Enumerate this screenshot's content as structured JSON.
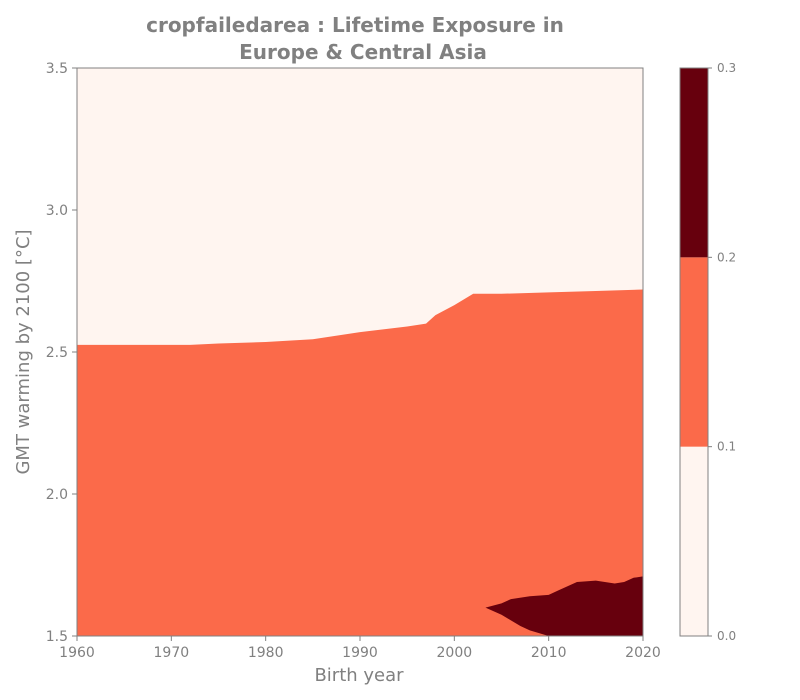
{
  "chart_data": {
    "type": "filled-contour",
    "title_lines": [
      "cropfailedarea : Lifetime Exposure in",
      "Europe & Central Asia"
    ],
    "xlabel": "Birth year",
    "ylabel": "GMT warming by 2100 [°C]",
    "xlim": [
      1960,
      2020
    ],
    "ylim": [
      1.5,
      3.5
    ],
    "xticks": [
      1960,
      1970,
      1980,
      1990,
      2000,
      2010,
      2020
    ],
    "xtick_labels": [
      "1960",
      "1970",
      "1980",
      "1990",
      "2000",
      "2010",
      "2020"
    ],
    "yticks": [
      1.5,
      2.0,
      2.5,
      3.0,
      3.5
    ],
    "ytick_labels": [
      "1.5",
      "2.0",
      "2.5",
      "3.0",
      "3.5"
    ],
    "levels": [
      0.0,
      0.1,
      0.2,
      0.3
    ],
    "level_labels": [
      "0.0",
      "0.1",
      "0.2",
      "0.3"
    ],
    "level_colors": [
      "#fff5f0",
      "#fb6a4a",
      "#67000d"
    ],
    "background_level_color": "#fff5f0",
    "boundary_0_1_to_0_1_0_2": [
      [
        1960,
        2.525
      ],
      [
        1965,
        2.525
      ],
      [
        1970,
        2.525
      ],
      [
        1972,
        2.525
      ],
      [
        1975,
        2.53
      ],
      [
        1980,
        2.535
      ],
      [
        1985,
        2.545
      ],
      [
        1990,
        2.57
      ],
      [
        1995,
        2.59
      ],
      [
        1997,
        2.6
      ],
      [
        1998,
        2.63
      ],
      [
        2000,
        2.665
      ],
      [
        2002,
        2.705
      ],
      [
        2005,
        2.705
      ],
      [
        2010,
        2.71
      ],
      [
        2015,
        2.715
      ],
      [
        2020,
        2.72
      ]
    ],
    "region_0_2_to_0_3_upper": [
      [
        2003.3,
        1.6
      ],
      [
        2005,
        1.615
      ],
      [
        2006,
        1.63
      ],
      [
        2008,
        1.64
      ],
      [
        2010,
        1.645
      ],
      [
        2011,
        1.66
      ],
      [
        2013,
        1.69
      ],
      [
        2015,
        1.695
      ],
      [
        2017,
        1.685
      ],
      [
        2018,
        1.69
      ],
      [
        2019,
        1.705
      ],
      [
        2020,
        1.71
      ]
    ],
    "region_0_2_to_0_3_lower": [
      [
        2020,
        1.5
      ],
      [
        2010,
        1.5
      ],
      [
        2008,
        1.52
      ],
      [
        2007,
        1.535
      ],
      [
        2006,
        1.555
      ],
      [
        2005,
        1.575
      ],
      [
        2003.3,
        1.6
      ]
    ]
  }
}
